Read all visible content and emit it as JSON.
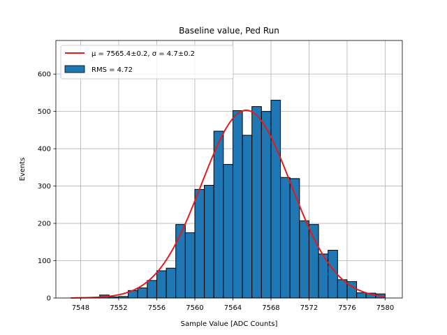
{
  "chart_data": {
    "type": "bar",
    "title": "Baseline value, Ped Run",
    "xlabel": "Sample Value [ADC Counts]",
    "ylabel": "Events",
    "xlim": [
      7545.4,
      7581.8
    ],
    "ylim": [
      0,
      690
    ],
    "xticks": [
      7548,
      7552,
      7556,
      7560,
      7564,
      7568,
      7572,
      7576,
      7580
    ],
    "yticks": [
      0,
      100,
      200,
      300,
      400,
      500,
      600
    ],
    "grid": true,
    "legend_position": "top-left",
    "bins": {
      "edges": [
        7547.0,
        7548.0,
        7549.0,
        7550.0,
        7551.0,
        7552.0,
        7553.0,
        7554.0,
        7555.0,
        7556.0,
        7557.0,
        7558.0,
        7559.0,
        7560.0,
        7561.0,
        7562.0,
        7563.0,
        7564.0,
        7565.0,
        7566.0,
        7567.0,
        7568.0,
        7569.0,
        7570.0,
        7571.0,
        7572.0,
        7573.0,
        7574.0,
        7575.0,
        7576.0,
        7577.0,
        7578.0,
        7579.0,
        7580.0
      ],
      "values": [
        1,
        1,
        2,
        8,
        3,
        4,
        20,
        27,
        47,
        73,
        80,
        197,
        175,
        291,
        302,
        447,
        358,
        502,
        436,
        513,
        500,
        530,
        323,
        320,
        207,
        197,
        118,
        128,
        49,
        44,
        14,
        13,
        11
      ],
      "color": "#1f77b4",
      "edge_color": "#000000"
    },
    "fit": {
      "mu": 7565.4,
      "sigma": 4.7,
      "amplitude": 503,
      "x_range": [
        7547.0,
        7580.0
      ],
      "color": "#e31a1c"
    },
    "legend": [
      {
        "label": "μ = 7565.4±0.2, σ = 4.7±0.2",
        "type": "line",
        "color": "#e31a1c"
      },
      {
        "label": "RMS = 4.72",
        "type": "patch",
        "color": "#1f77b4"
      }
    ]
  }
}
